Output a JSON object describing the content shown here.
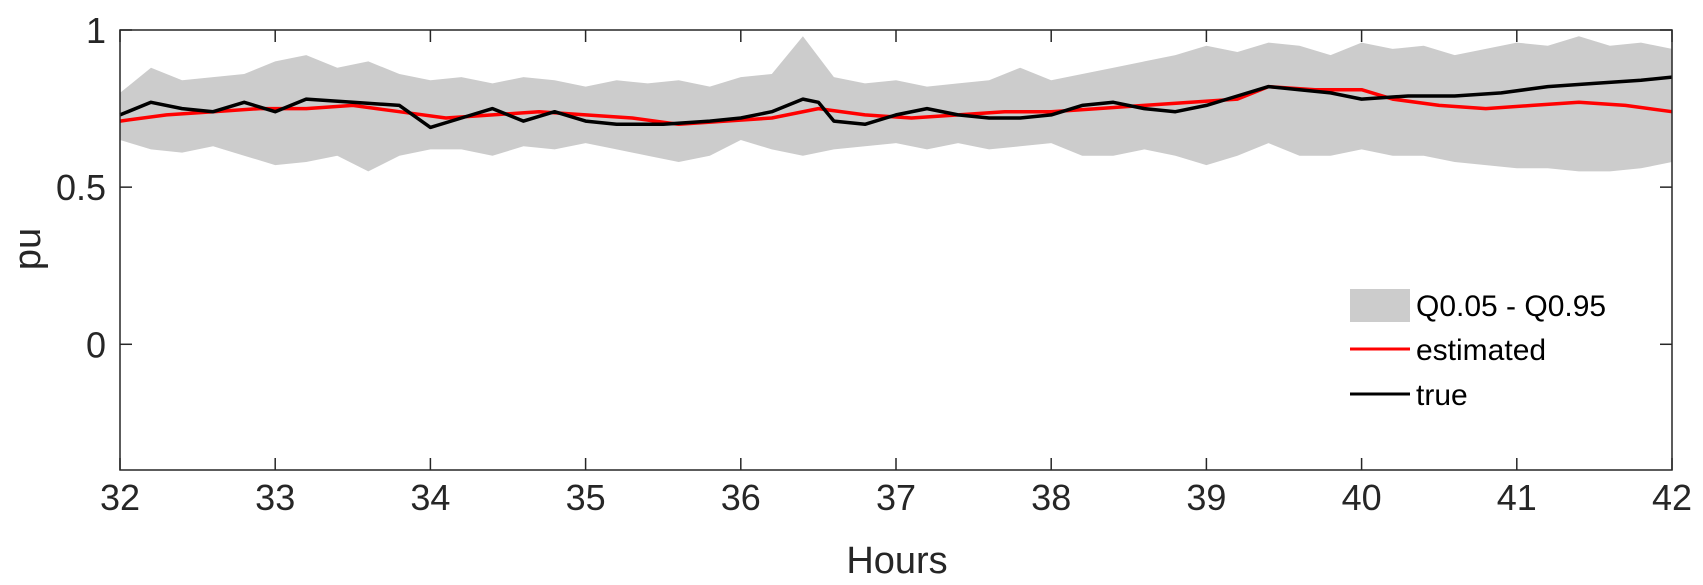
{
  "chart_data": {
    "type": "line",
    "xlabel": "Hours",
    "ylabel": "pu",
    "xlim": [
      32,
      42
    ],
    "ylim": [
      -0.4,
      1
    ],
    "xticks": [
      "32",
      "33",
      "34",
      "35",
      "36",
      "37",
      "38",
      "39",
      "40",
      "41",
      "42"
    ],
    "yticks": [
      "0",
      "0.5",
      "1"
    ],
    "grid": false,
    "legend_position": "lower-right",
    "band": {
      "name": "Q0.05 - Q0.95",
      "color": "#cccccc",
      "x": [
        32.0,
        32.2,
        32.4,
        32.6,
        32.8,
        33.0,
        33.2,
        33.4,
        33.6,
        33.8,
        34.0,
        34.2,
        34.4,
        34.6,
        34.8,
        35.0,
        35.2,
        35.4,
        35.6,
        35.8,
        36.0,
        36.2,
        36.4,
        36.6,
        36.8,
        37.0,
        37.2,
        37.4,
        37.6,
        37.8,
        38.0,
        38.2,
        38.4,
        38.6,
        38.8,
        39.0,
        39.2,
        39.4,
        39.6,
        39.8,
        40.0,
        40.2,
        40.4,
        40.6,
        40.8,
        41.0,
        41.2,
        41.4,
        41.6,
        41.8,
        42.0
      ],
      "lower": [
        0.65,
        0.62,
        0.61,
        0.63,
        0.6,
        0.57,
        0.58,
        0.6,
        0.55,
        0.6,
        0.62,
        0.62,
        0.6,
        0.63,
        0.62,
        0.64,
        0.62,
        0.6,
        0.58,
        0.6,
        0.65,
        0.62,
        0.6,
        0.62,
        0.63,
        0.64,
        0.62,
        0.64,
        0.62,
        0.63,
        0.64,
        0.6,
        0.6,
        0.62,
        0.6,
        0.57,
        0.6,
        0.64,
        0.6,
        0.6,
        0.62,
        0.6,
        0.6,
        0.58,
        0.57,
        0.56,
        0.56,
        0.55,
        0.55,
        0.56,
        0.58
      ],
      "upper": [
        0.8,
        0.88,
        0.84,
        0.85,
        0.86,
        0.9,
        0.92,
        0.88,
        0.9,
        0.86,
        0.84,
        0.85,
        0.83,
        0.85,
        0.84,
        0.82,
        0.84,
        0.83,
        0.84,
        0.82,
        0.85,
        0.86,
        0.98,
        0.85,
        0.83,
        0.84,
        0.82,
        0.83,
        0.84,
        0.88,
        0.84,
        0.86,
        0.88,
        0.9,
        0.92,
        0.95,
        0.93,
        0.96,
        0.95,
        0.92,
        0.96,
        0.94,
        0.95,
        0.92,
        0.94,
        0.96,
        0.95,
        0.98,
        0.95,
        0.96,
        0.94
      ]
    },
    "series": [
      {
        "name": "estimated",
        "color": "#ff0000",
        "x": [
          32.0,
          32.3,
          32.6,
          32.9,
          33.2,
          33.5,
          33.8,
          34.1,
          34.4,
          34.7,
          35.0,
          35.3,
          35.6,
          35.9,
          36.2,
          36.5,
          36.8,
          37.1,
          37.4,
          37.7,
          38.0,
          38.3,
          38.6,
          38.9,
          39.2,
          39.4,
          39.7,
          40.0,
          40.2,
          40.5,
          40.8,
          41.1,
          41.4,
          41.7,
          42.0
        ],
        "y": [
          0.71,
          0.73,
          0.74,
          0.75,
          0.75,
          0.76,
          0.74,
          0.72,
          0.73,
          0.74,
          0.73,
          0.72,
          0.7,
          0.71,
          0.72,
          0.75,
          0.73,
          0.72,
          0.73,
          0.74,
          0.74,
          0.75,
          0.76,
          0.77,
          0.78,
          0.82,
          0.81,
          0.81,
          0.78,
          0.76,
          0.75,
          0.76,
          0.77,
          0.76,
          0.74
        ]
      },
      {
        "name": "true",
        "color": "#000000",
        "x": [
          32.0,
          32.2,
          32.4,
          32.6,
          32.8,
          33.0,
          33.2,
          33.5,
          33.8,
          34.0,
          34.2,
          34.4,
          34.6,
          34.8,
          35.0,
          35.2,
          35.5,
          35.8,
          36.0,
          36.2,
          36.4,
          36.5,
          36.6,
          36.8,
          37.0,
          37.2,
          37.4,
          37.6,
          37.8,
          38.0,
          38.2,
          38.4,
          38.6,
          38.8,
          39.0,
          39.2,
          39.4,
          39.6,
          39.8,
          40.0,
          40.3,
          40.6,
          40.9,
          41.2,
          41.5,
          41.8,
          42.0
        ],
        "y": [
          0.73,
          0.77,
          0.75,
          0.74,
          0.77,
          0.74,
          0.78,
          0.77,
          0.76,
          0.69,
          0.72,
          0.75,
          0.71,
          0.74,
          0.71,
          0.7,
          0.7,
          0.71,
          0.72,
          0.74,
          0.78,
          0.77,
          0.71,
          0.7,
          0.73,
          0.75,
          0.73,
          0.72,
          0.72,
          0.73,
          0.76,
          0.77,
          0.75,
          0.74,
          0.76,
          0.79,
          0.82,
          0.81,
          0.8,
          0.78,
          0.79,
          0.79,
          0.8,
          0.82,
          0.83,
          0.84,
          0.85
        ]
      }
    ]
  }
}
